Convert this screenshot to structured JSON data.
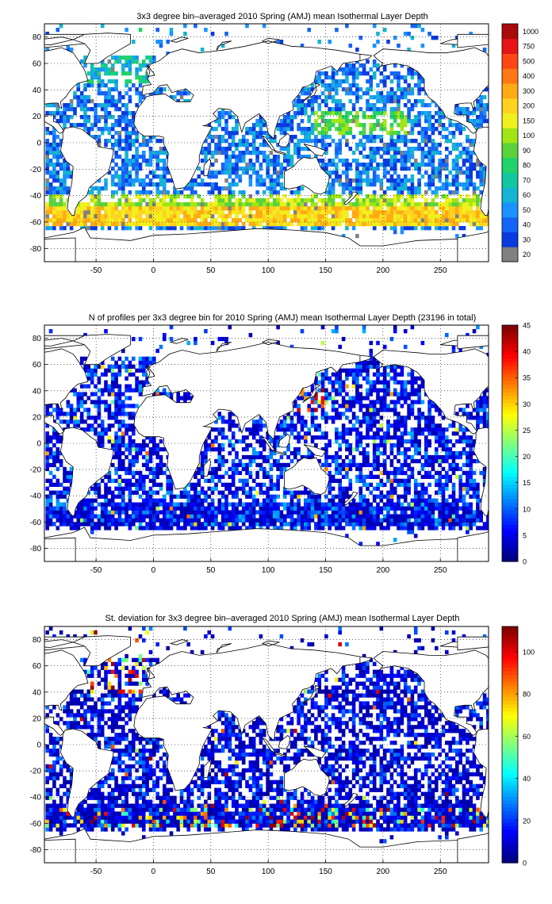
{
  "chart_data": [
    {
      "type": "heatmap",
      "title": "3x3 degree bin–averaged 2010 Spring (AMJ) mean Isothermal Layer Depth",
      "xlim": [
        -95,
        292
      ],
      "ylim": [
        -90,
        90
      ],
      "xticks": [
        "-50",
        "0",
        "50",
        "100",
        "150",
        "200",
        "250"
      ],
      "yticks": [
        "80",
        "60",
        "40",
        "20",
        "0",
        "-20",
        "-40",
        "-60",
        "-80"
      ],
      "grid": "dotted",
      "colorbar": {
        "scale": "categorical",
        "labels": [
          "20",
          "30",
          "40",
          "50",
          "60",
          "70",
          "80",
          "90",
          "100",
          "150",
          "200",
          "300",
          "400",
          "500",
          "750",
          "1000"
        ],
        "colors": [
          "#808080",
          "#0a3be0",
          "#1464f5",
          "#1a92ff",
          "#14b4d2",
          "#12c8a0",
          "#22d26a",
          "#5ad23c",
          "#a0e614",
          "#f0f01e",
          "#ffd21e",
          "#ffaa14",
          "#ff7814",
          "#ff4614",
          "#e61414",
          "#aa0a0a"
        ]
      },
      "dominant_values": {
        "north_pacific": "20–40 with 70–100 band near 0–20N",
        "southern_ocean_50S_60S": "100–300",
        "tropics": "30–60"
      }
    },
    {
      "type": "heatmap",
      "title": "N of profiles per 3x3 degree bin for 2010 Spring (AMJ) mean Isothermal Layer Depth  (23196 in total)",
      "xlim": [
        -95,
        292
      ],
      "ylim": [
        -90,
        90
      ],
      "xticks": [
        "-50",
        "0",
        "50",
        "100",
        "150",
        "200",
        "250"
      ],
      "yticks": [
        "80",
        "60",
        "40",
        "20",
        "0",
        "-20",
        "-40",
        "-60",
        "-80"
      ],
      "grid": "dotted",
      "colorbar": {
        "scale": "continuous",
        "min": 0,
        "max": 45,
        "labels": [
          "0",
          "5",
          "10",
          "15",
          "20",
          "25",
          "30",
          "35",
          "40",
          "45"
        ]
      },
      "total_profiles": 23196,
      "typical_bin_count": "2–8, hot spots of 35–45 near 140E 35N"
    },
    {
      "type": "heatmap",
      "title": "St. deviation for 3x3 degree bin–averaged 2010 Spring (AMJ) mean Isothermal Layer Depth",
      "xlim": [
        -95,
        292
      ],
      "ylim": [
        -90,
        90
      ],
      "xticks": [
        "-50",
        "0",
        "50",
        "100",
        "150",
        "200",
        "250"
      ],
      "yticks": [
        "80",
        "60",
        "40",
        "20",
        "0",
        "-20",
        "-40",
        "-60",
        "-80"
      ],
      "grid": "dotted",
      "colorbar": {
        "scale": "continuous",
        "min": 0,
        "max": 112,
        "labels": [
          "0",
          "20",
          "40",
          "60",
          "80",
          "100"
        ]
      },
      "typical_std": "5–25, peaks 80–110 in North Atlantic and Southern Ocean near 55S"
    }
  ]
}
